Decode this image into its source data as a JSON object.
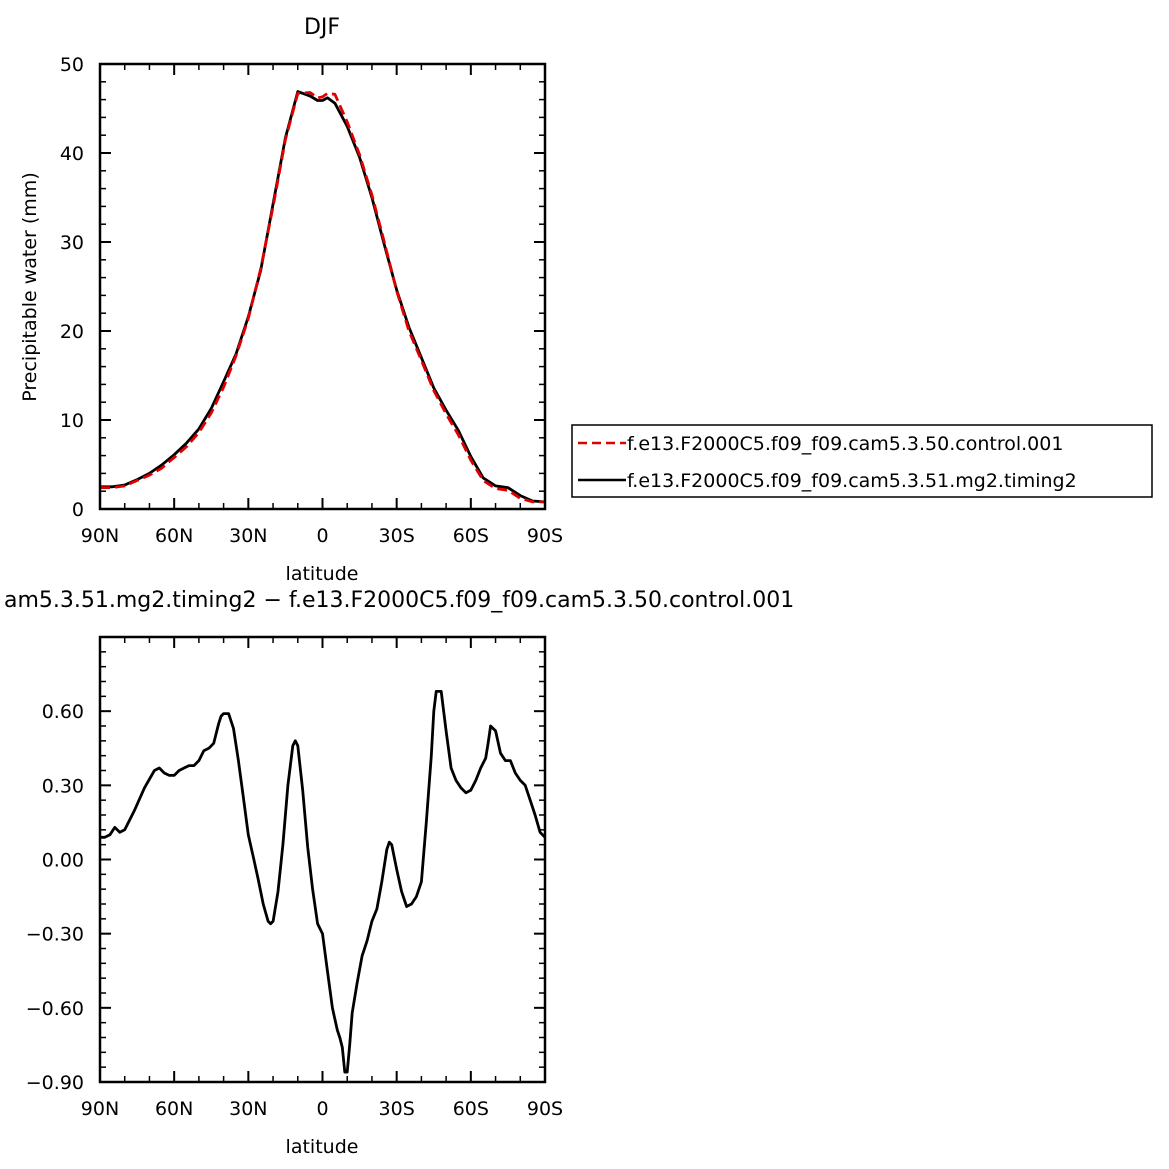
{
  "chart_data": [
    {
      "type": "line",
      "title": "DJF",
      "xlabel": "latitude",
      "ylabel": "Precipitable water (mm)",
      "xlim": [
        90,
        -90
      ],
      "ylim": [
        0,
        50
      ],
      "x_ticks": [
        90,
        60,
        30,
        0,
        -30,
        -60,
        -90
      ],
      "x_tick_labels": [
        "90N",
        "60N",
        "30N",
        "0",
        "30S",
        "60S",
        "90S"
      ],
      "y_ticks": [
        0,
        10,
        20,
        30,
        40,
        50
      ],
      "y_tick_labels": [
        "0",
        "10",
        "20",
        "30",
        "40",
        "50"
      ],
      "legend_position": "right, outside plot, bottom",
      "series": [
        {
          "name": "f.e13.F2000C5.f09_f09.cam5.3.50.control.001",
          "color": "#e00000",
          "style": "dashed",
          "x": [
            90,
            85,
            80,
            75,
            70,
            65,
            60,
            55,
            50,
            45,
            40,
            35,
            30,
            25,
            20,
            15,
            10,
            5,
            2,
            0,
            -2,
            -5,
            -10,
            -15,
            -20,
            -25,
            -30,
            -35,
            -40,
            -45,
            -50,
            -55,
            -60,
            -65,
            -70,
            -75,
            -80,
            -85,
            -90
          ],
          "y": [
            2.4,
            2.4,
            2.6,
            3.2,
            3.8,
            4.6,
            5.8,
            7.0,
            8.6,
            10.8,
            13.7,
            17.2,
            21.4,
            27.0,
            34.0,
            41.5,
            46.7,
            46.8,
            46.2,
            46.3,
            46.7,
            46.6,
            43.5,
            39.8,
            35.3,
            30.0,
            24.5,
            20.0,
            16.7,
            13.3,
            10.7,
            8.3,
            5.5,
            3.2,
            2.3,
            2.1,
            1.2,
            0.8,
            0.8
          ]
        },
        {
          "name": "f.e13.F2000C5.f09_f09.cam5.3.51.mg2.timing2",
          "color": "#000000",
          "style": "solid",
          "x": [
            90,
            85,
            80,
            75,
            70,
            65,
            60,
            55,
            50,
            45,
            40,
            35,
            30,
            25,
            20,
            15,
            10,
            5,
            2,
            0,
            -2,
            -5,
            -10,
            -15,
            -20,
            -25,
            -30,
            -35,
            -40,
            -45,
            -50,
            -55,
            -60,
            -65,
            -70,
            -75,
            -80,
            -85,
            -90
          ],
          "y": [
            2.5,
            2.5,
            2.7,
            3.3,
            4.0,
            4.95,
            6.1,
            7.4,
            9.0,
            11.3,
            14.3,
            17.4,
            21.6,
            26.8,
            34.3,
            41.7,
            46.9,
            46.4,
            45.9,
            45.9,
            46.2,
            45.6,
            43.0,
            39.5,
            35.0,
            29.7,
            24.6,
            20.4,
            17.0,
            13.6,
            11.1,
            8.8,
            5.9,
            3.5,
            2.6,
            2.4,
            1.5,
            0.9,
            0.8
          ]
        }
      ]
    },
    {
      "type": "line",
      "title": "am5.3.51.mg2.timing2 − f.e13.F2000C5.f09_f09.cam5.3.50.control.001",
      "xlabel": "latitude",
      "ylabel": "",
      "xlim": [
        90,
        -90
      ],
      "ylim": [
        -0.9,
        0.9
      ],
      "x_ticks": [
        90,
        60,
        30,
        0,
        -30,
        -60,
        -90
      ],
      "x_tick_labels": [
        "90N",
        "60N",
        "30N",
        "0",
        "30S",
        "60S",
        "90S"
      ],
      "y_ticks": [
        -0.9,
        -0.6,
        -0.3,
        0.0,
        0.3,
        0.6
      ],
      "y_tick_labels": [
        "−0.90",
        "−0.60",
        "−0.30",
        "0.00",
        "0.30",
        "0.60"
      ],
      "series": [
        {
          "color": "#000000",
          "style": "solid",
          "x": [
            90,
            88,
            86,
            84,
            82,
            80,
            76,
            72,
            68,
            66,
            64,
            62,
            60,
            58,
            56,
            54,
            52,
            50,
            48,
            46,
            44,
            42,
            41,
            40,
            38,
            36,
            34,
            32,
            30,
            28,
            26,
            24,
            22,
            21,
            20,
            18,
            16,
            14,
            12,
            11,
            10,
            8,
            6,
            4,
            2,
            0,
            -2,
            -4,
            -6,
            -7,
            -8,
            -9,
            -10,
            -11,
            -12,
            -14,
            -16,
            -18,
            -20,
            -22,
            -24,
            -26,
            -27,
            -28,
            -30,
            -32,
            -34,
            -36,
            -38,
            -40,
            -42,
            -44,
            -45,
            -46,
            -48,
            -50,
            -52,
            -54,
            -56,
            -58,
            -60,
            -62,
            -64,
            -66,
            -67,
            -68,
            -70,
            -72,
            -74,
            -76,
            -78,
            -80,
            -82,
            -84,
            -86,
            -88,
            -90
          ],
          "y": [
            0.09,
            0.09,
            0.1,
            0.13,
            0.11,
            0.12,
            0.2,
            0.29,
            0.36,
            0.37,
            0.35,
            0.34,
            0.34,
            0.36,
            0.37,
            0.38,
            0.38,
            0.4,
            0.44,
            0.45,
            0.47,
            0.55,
            0.58,
            0.59,
            0.59,
            0.53,
            0.4,
            0.25,
            0.1,
            0.01,
            -0.08,
            -0.18,
            -0.25,
            -0.26,
            -0.25,
            -0.13,
            0.06,
            0.3,
            0.46,
            0.48,
            0.46,
            0.28,
            0.05,
            -0.12,
            -0.26,
            -0.3,
            -0.45,
            -0.6,
            -0.69,
            -0.72,
            -0.76,
            -0.86,
            -0.86,
            -0.75,
            -0.62,
            -0.5,
            -0.39,
            -0.33,
            -0.25,
            -0.2,
            -0.09,
            0.04,
            0.07,
            0.06,
            -0.04,
            -0.13,
            -0.19,
            -0.18,
            -0.15,
            -0.09,
            0.15,
            0.42,
            0.6,
            0.68,
            0.68,
            0.52,
            0.37,
            0.32,
            0.29,
            0.27,
            0.28,
            0.32,
            0.37,
            0.41,
            0.47,
            0.54,
            0.52,
            0.43,
            0.4,
            0.4,
            0.35,
            0.32,
            0.3,
            0.24,
            0.18,
            0.11,
            0.09
          ]
        }
      ]
    }
  ]
}
